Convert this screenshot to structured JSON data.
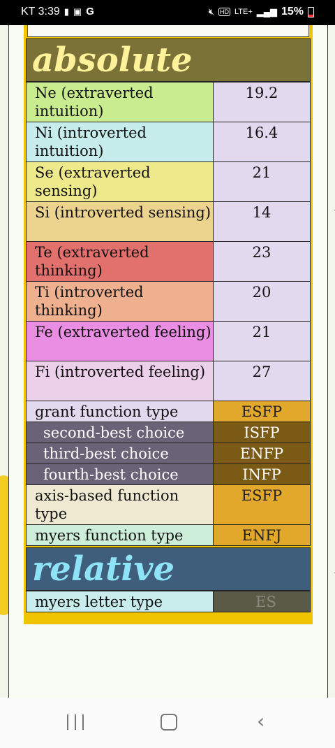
{
  "status_bar": {
    "carrier_time": "KT 3:39",
    "right_text": "15%",
    "network": "LTE+",
    "icons": [
      "battery-saver-icon",
      "image-icon",
      "google-icon",
      "mute-icon",
      "hd-icon",
      "signal-icon",
      "battery-icon"
    ]
  },
  "absolute": {
    "title": "absolute",
    "functions": [
      {
        "label": "Ne (extraverted intuition)",
        "value": "19.2",
        "color": "#c9ec8e"
      },
      {
        "label": "Ni (introverted intuition)",
        "value": "16.4",
        "color": "#c6ecec"
      },
      {
        "label": "Se (extraverted sensing)",
        "value": "21",
        "color": "#eeea8c"
      },
      {
        "label": "Si (introverted sensing)",
        "value": "14",
        "color": "#ecd48e"
      },
      {
        "label": "Te (extraverted thinking)",
        "value": "23",
        "color": "#e2706c"
      },
      {
        "label": "Ti (introverted thinking)",
        "value": "20",
        "color": "#eeb08e"
      },
      {
        "label": "Fe (extraverted feeling)",
        "value": "21",
        "color": "#e98ee2"
      },
      {
        "label": "Fi (introverted feeling)",
        "value": "27",
        "color": "#eccfe8"
      }
    ],
    "grant": {
      "label": "grant function type",
      "value": "ESFP"
    },
    "choices": [
      {
        "label": "second-best choice",
        "value": "ISFP"
      },
      {
        "label": "third-best choice",
        "value": "ENFP"
      },
      {
        "label": "fourth-best choice",
        "value": "INFP"
      }
    ],
    "axis": {
      "label": "axis-based function type",
      "value": "ESFP"
    },
    "myers": {
      "label": "myers function type",
      "value": "ENFJ"
    }
  },
  "relative": {
    "title": "relative",
    "myers_letter": {
      "label": "myers letter type",
      "value": "ES"
    }
  },
  "nav": {
    "recent": "recent-apps-icon",
    "home": "home-icon",
    "back": "back-icon"
  }
}
